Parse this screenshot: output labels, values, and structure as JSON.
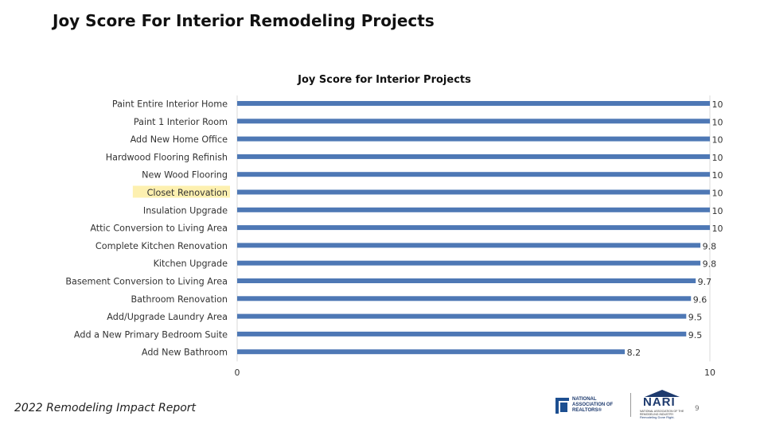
{
  "slide": {
    "title": "Joy Score For Interior Remodeling Projects",
    "footer": "2022 Remodeling Impact Report",
    "page_number": "9"
  },
  "logos": {
    "nar_text": "NATIONAL ASSOCIATION OF REALTORS®",
    "nari_word": "NARI",
    "nari_sub": "NATIONAL ASSOCIATION OF THE REMODELING INDUSTRY",
    "nari_tag": "Remodeling Done Right."
  },
  "colors": {
    "bar": "#4e78b5",
    "highlight": "#fdf0b0",
    "axis": "#d9d9d9",
    "text": "#333333"
  },
  "chart_data": {
    "type": "bar",
    "orientation": "horizontal",
    "title": "Joy Score for Interior Projects",
    "xlabel": "",
    "ylabel": "",
    "xlim": [
      0,
      10
    ],
    "x_ticks": [
      "0",
      "10"
    ],
    "grid": false,
    "legend": "none",
    "highlighted_category": "Closet Renovation",
    "categories": [
      "Paint Entire Interior Home",
      "Paint 1 Interior Room",
      "Add New Home Office",
      "Hardwood Flooring Refinish",
      "New Wood Flooring",
      "Closet Renovation",
      "Insulation Upgrade",
      "Attic Conversion to Living Area",
      "Complete Kitchen Renovation",
      "Kitchen Upgrade",
      "Basement Conversion to Living Area",
      "Bathroom Renovation",
      "Add/Upgrade Laundry Area",
      "Add a New Primary Bedroom Suite",
      "Add New Bathroom"
    ],
    "values": [
      10,
      10,
      10,
      10,
      10,
      10,
      10,
      10,
      9.8,
      9.8,
      9.7,
      9.6,
      9.5,
      9.5,
      8.2
    ],
    "value_labels": [
      "10",
      "10",
      "10",
      "10",
      "10",
      "10",
      "10",
      "10",
      "9.8",
      "9.8",
      "9.7",
      "9.6",
      "9.5",
      "9.5",
      "8.2"
    ]
  }
}
